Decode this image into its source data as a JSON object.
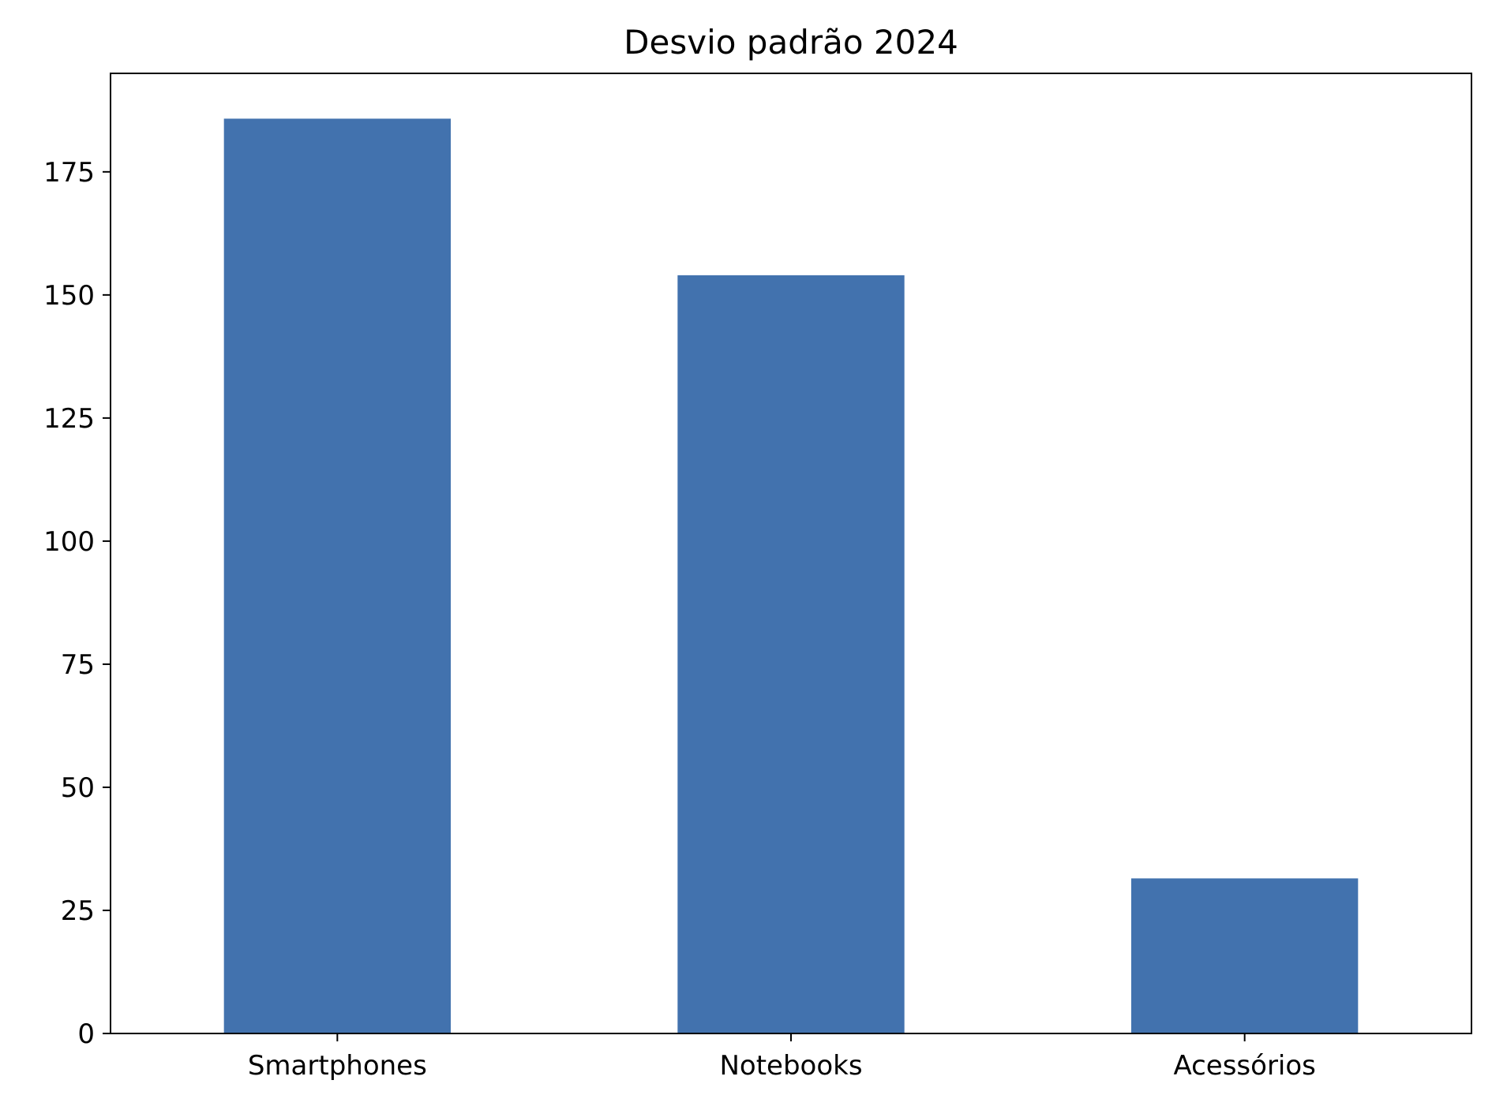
{
  "chart_data": {
    "type": "bar",
    "title": "Desvio padrão 2024",
    "xlabel": "",
    "ylabel": "",
    "categories": [
      "Smartphones",
      "Notebooks",
      "Acessórios"
    ],
    "values": [
      185.8,
      154.0,
      31.5
    ],
    "ylim": [
      0,
      195
    ],
    "yticks": [
      0,
      25,
      50,
      75,
      100,
      125,
      150,
      175
    ],
    "grid": false,
    "bar_color": "#4272ae"
  }
}
